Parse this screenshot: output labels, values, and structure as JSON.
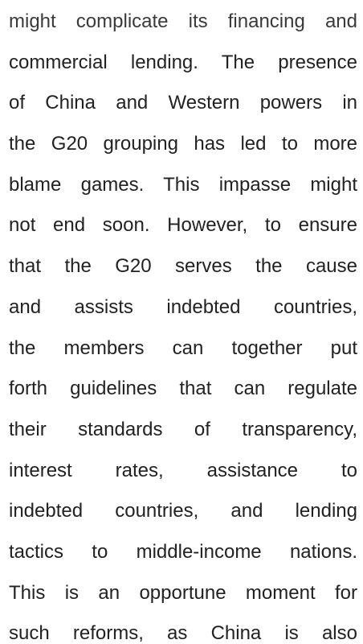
{
  "document": {
    "lines": [
      "might complicate its financing and",
      "commercial lending. The presence",
      "of China and Western powers in",
      "the G20 grouping has led to more",
      "blame games. This impasse might",
      "not end soon. However, to ensure",
      "that the G20 serves the cause",
      "and assists indebted countries,",
      "the members can together put",
      "forth guidelines that can regulate",
      "their standards of transparency,",
      "interest rates, assistance to",
      "indebted countries, and lending",
      "tactics to middle-income nations.",
      "This is an opportune moment for",
      "such reforms, as China is also"
    ]
  }
}
